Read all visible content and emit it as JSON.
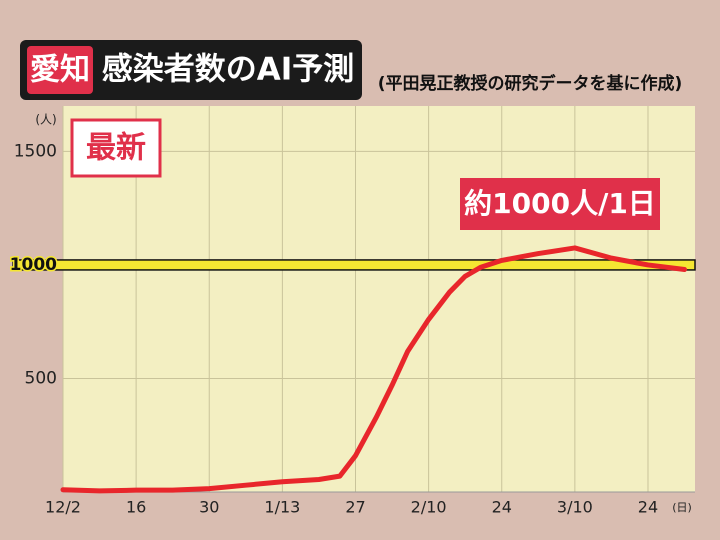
{
  "chart_data": {
    "type": "line",
    "badge": "愛知",
    "title": "感染者数のAI予測",
    "subtitle": "(平田晃正教授の研究データを基に作成)",
    "tag": "最新",
    "annotation": "約1000人/1日",
    "y_unit": "(人)",
    "x_unit": "(日)",
    "x": [
      "12-02",
      "12-09",
      "12-16",
      "12-23",
      "12-30",
      "01-06",
      "01-13",
      "01-20",
      "01-24",
      "01-27",
      "01-31",
      "02-03",
      "02-06",
      "02-10",
      "02-14",
      "02-17",
      "02-20",
      "02-24",
      "03-03",
      "03-10",
      "03-17",
      "03-24",
      "03-31"
    ],
    "series": [
      {
        "name": "AI予測",
        "color": "#e8262b",
        "values": [
          10,
          5,
          8,
          8,
          15,
          30,
          45,
          55,
          70,
          160,
          330,
          470,
          620,
          760,
          880,
          950,
          990,
          1020,
          1050,
          1075,
          1030,
          1000,
          980
        ]
      }
    ],
    "xlim": [
      "12-02",
      "04-02"
    ],
    "xticks": [
      {
        "value": "12-02",
        "label": "12/2"
      },
      {
        "value": "12-16",
        "label": "16"
      },
      {
        "value": "12-30",
        "label": "30"
      },
      {
        "value": "01-13",
        "label": "1/13"
      },
      {
        "value": "01-27",
        "label": "27"
      },
      {
        "value": "02-10",
        "label": "2/10"
      },
      {
        "value": "02-24",
        "label": "24"
      },
      {
        "value": "03-10",
        "label": "3/10"
      },
      {
        "value": "03-24",
        "label": "24"
      }
    ],
    "ylim": [
      0,
      1700
    ],
    "yticks": [
      500,
      1000,
      1500
    ],
    "reference_line": 1000,
    "grid": true
  }
}
